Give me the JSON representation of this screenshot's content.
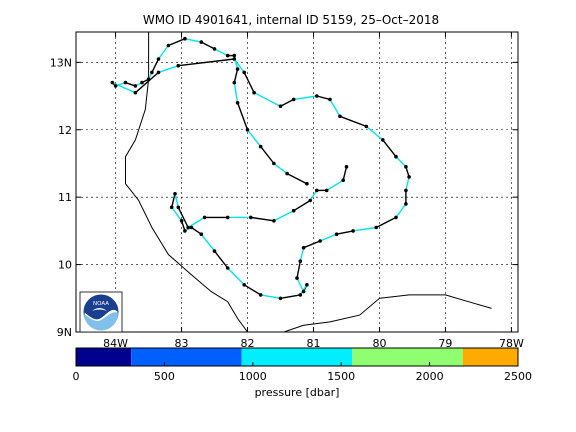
{
  "title": "WMO ID 4901641, internal ID 5159, 25–Oct–2018",
  "map": {
    "lon_range": [
      -84.6,
      -77.9
    ],
    "lat_range": [
      9.0,
      13.45
    ],
    "lon_ticks": [
      {
        "value": -84,
        "label": "84W"
      },
      {
        "value": -83,
        "label": "83"
      },
      {
        "value": -82,
        "label": "82"
      },
      {
        "value": -81,
        "label": "81"
      },
      {
        "value": -80,
        "label": "80"
      },
      {
        "value": -79,
        "label": "79"
      },
      {
        "value": -78,
        "label": "78W"
      }
    ],
    "lat_ticks": [
      {
        "value": 9,
        "label": "9N"
      },
      {
        "value": 10,
        "label": "10"
      },
      {
        "value": 11,
        "label": "11"
      },
      {
        "value": 12,
        "label": "12"
      },
      {
        "value": 13,
        "label": "13N"
      }
    ],
    "grid": true,
    "coastline_color": "#000000",
    "trajectory": {
      "segment_colors": [
        "#000000",
        "#00e5ee"
      ],
      "marker_color": "#000000",
      "points": [
        [
          -81.1,
          11.2
        ],
        [
          -81.4,
          11.35
        ],
        [
          -81.6,
          11.5
        ],
        [
          -81.8,
          11.75
        ],
        [
          -82.0,
          12.0
        ],
        [
          -82.15,
          12.4
        ],
        [
          -82.2,
          12.7
        ],
        [
          -82.15,
          12.9
        ],
        [
          -82.2,
          13.1
        ],
        [
          -82.3,
          13.1
        ],
        [
          -82.5,
          13.2
        ],
        [
          -82.7,
          13.3
        ],
        [
          -82.95,
          13.35
        ],
        [
          -83.2,
          13.25
        ],
        [
          -83.35,
          13.05
        ],
        [
          -83.45,
          12.85
        ],
        [
          -83.5,
          12.75
        ],
        [
          -83.6,
          12.7
        ],
        [
          -83.7,
          12.65
        ],
        [
          -83.85,
          12.7
        ],
        [
          -84.0,
          12.65
        ],
        [
          -84.05,
          12.7
        ],
        [
          -83.7,
          12.55
        ],
        [
          -83.35,
          12.85
        ],
        [
          -83.05,
          12.95
        ],
        [
          -82.2,
          13.05
        ],
        [
          -82.05,
          12.85
        ],
        [
          -81.9,
          12.55
        ],
        [
          -81.5,
          12.35
        ],
        [
          -81.3,
          12.45
        ],
        [
          -80.95,
          12.5
        ],
        [
          -80.75,
          12.45
        ],
        [
          -80.6,
          12.2
        ],
        [
          -80.2,
          12.05
        ],
        [
          -79.95,
          11.85
        ],
        [
          -79.75,
          11.6
        ],
        [
          -79.6,
          11.45
        ],
        [
          -79.55,
          11.3
        ],
        [
          -79.6,
          11.1
        ],
        [
          -79.6,
          10.9
        ],
        [
          -79.75,
          10.7
        ],
        [
          -80.05,
          10.55
        ],
        [
          -80.4,
          10.5
        ],
        [
          -80.65,
          10.45
        ],
        [
          -80.9,
          10.35
        ],
        [
          -81.15,
          10.25
        ],
        [
          -81.2,
          10.05
        ],
        [
          -81.25,
          9.8
        ],
        [
          -81.15,
          9.6
        ],
        [
          -81.1,
          9.7
        ],
        [
          -81.2,
          9.55
        ],
        [
          -81.5,
          9.5
        ],
        [
          -81.8,
          9.55
        ],
        [
          -82.05,
          9.7
        ],
        [
          -82.3,
          9.95
        ],
        [
          -82.5,
          10.2
        ],
        [
          -82.7,
          10.45
        ],
        [
          -82.85,
          10.55
        ],
        [
          -82.95,
          10.5
        ],
        [
          -83.0,
          10.65
        ],
        [
          -83.15,
          10.85
        ],
        [
          -83.1,
          11.05
        ],
        [
          -83.05,
          10.85
        ],
        [
          -82.9,
          10.55
        ],
        [
          -82.65,
          10.7
        ],
        [
          -82.3,
          10.7
        ],
        [
          -81.95,
          10.7
        ],
        [
          -81.6,
          10.65
        ],
        [
          -81.3,
          10.8
        ],
        [
          -81.05,
          10.95
        ],
        [
          -80.95,
          11.1
        ],
        [
          -80.8,
          11.1
        ],
        [
          -80.55,
          11.25
        ],
        [
          -80.5,
          11.45
        ]
      ]
    },
    "logo": {
      "text": "NOAA",
      "color_top": "#1a3f8f",
      "color_wave": "#7fc1ea"
    }
  },
  "colorbar": {
    "xlabel": "pressure [dbar]",
    "range": [
      0,
      2500
    ],
    "ticks": [
      {
        "value": 0,
        "label": "0"
      },
      {
        "value": 500,
        "label": "500"
      },
      {
        "value": 1000,
        "label": "1000"
      },
      {
        "value": 1500,
        "label": "1500"
      },
      {
        "value": 2000,
        "label": "2000"
      },
      {
        "value": 2500,
        "label": "2500"
      }
    ],
    "bins": [
      {
        "from": 0,
        "to": 312,
        "color": "#00008f"
      },
      {
        "from": 312,
        "to": 937,
        "color": "#0060ff"
      },
      {
        "from": 937,
        "to": 1562,
        "color": "#00eeff"
      },
      {
        "from": 1562,
        "to": 2187,
        "color": "#8fff6f"
      },
      {
        "from": 2187,
        "to": 2500,
        "color": "#ffaa00"
      }
    ]
  }
}
